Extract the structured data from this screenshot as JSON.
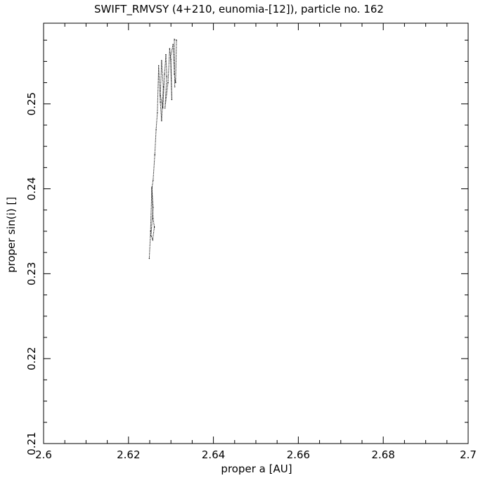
{
  "chart_data": {
    "type": "line",
    "title": "SWIFT_RMVSY (4+210, eunomia-[12]), particle no. 162",
    "xlabel": "proper a [AU]",
    "ylabel": "proper sin(i) []",
    "xlim": [
      2.6,
      2.7
    ],
    "ylim": [
      0.21,
      0.2595
    ],
    "x_ticks": [
      "2.6",
      "2.62",
      "2.64",
      "2.66",
      "2.68",
      "2.7"
    ],
    "y_ticks": [
      "0.21",
      "0.22",
      "0.23",
      "0.24",
      "0.25"
    ],
    "grid": false,
    "series": [
      {
        "x": [
          2.6249,
          2.6252,
          2.6255,
          2.6258,
          2.6253,
          2.6257,
          2.6261,
          2.6258,
          2.6255,
          2.6258,
          2.6262,
          2.6265,
          2.6268,
          2.6271,
          2.6275,
          2.6278,
          2.6282,
          2.6278,
          2.6275,
          2.6281,
          2.6285,
          2.6288,
          2.629,
          2.6286,
          2.6293,
          2.6297,
          2.63,
          2.6302,
          2.6299,
          2.6305,
          2.6308,
          2.6311,
          2.6313,
          2.6308,
          2.6309
        ],
        "y": [
          0.2318,
          0.235,
          0.2402,
          0.2378,
          0.2345,
          0.234,
          0.2355,
          0.2365,
          0.24,
          0.241,
          0.244,
          0.247,
          0.249,
          0.2545,
          0.2502,
          0.248,
          0.252,
          0.2551,
          0.251,
          0.2495,
          0.2535,
          0.2558,
          0.2532,
          0.2495,
          0.2525,
          0.2565,
          0.2552,
          0.2505,
          0.2555,
          0.257,
          0.2535,
          0.2525,
          0.2575,
          0.2576,
          0.252
        ]
      }
    ]
  }
}
